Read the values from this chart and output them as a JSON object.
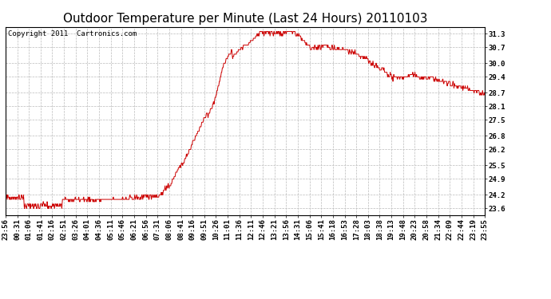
{
  "title": "Outdoor Temperature per Minute (Last 24 Hours) 20110103",
  "copyright": "Copyright 2011  Cartronics.com",
  "line_color": "#cc0000",
  "bg_color": "#ffffff",
  "plot_bg_color": "#ffffff",
  "grid_color": "#bbbbbb",
  "yticks": [
    23.6,
    24.2,
    24.9,
    25.5,
    26.2,
    26.8,
    27.5,
    28.1,
    28.7,
    29.4,
    30.0,
    30.7,
    31.3
  ],
  "ylim": [
    23.3,
    31.6
  ],
  "xtick_labels": [
    "23:56",
    "00:31",
    "01:06",
    "01:41",
    "02:16",
    "02:51",
    "03:26",
    "04:01",
    "04:36",
    "05:11",
    "05:46",
    "06:21",
    "06:56",
    "07:31",
    "08:06",
    "08:41",
    "09:16",
    "09:51",
    "10:26",
    "11:01",
    "11:36",
    "12:11",
    "12:46",
    "13:21",
    "13:56",
    "14:31",
    "15:06",
    "15:41",
    "16:18",
    "16:53",
    "17:28",
    "18:03",
    "18:38",
    "19:13",
    "19:48",
    "20:23",
    "20:58",
    "21:34",
    "22:09",
    "22:44",
    "23:19",
    "23:55"
  ],
  "title_fontsize": 11,
  "axis_fontsize": 6.5,
  "copyright_fontsize": 6.5
}
